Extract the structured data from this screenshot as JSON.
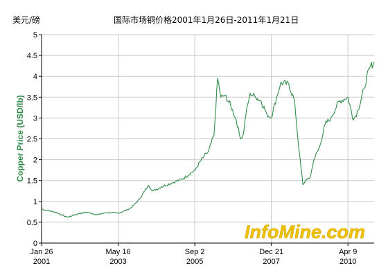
{
  "header": {
    "unit_label": "美元/磅",
    "title": "国际市场铜价格2001年1月26日-2011年1月21日"
  },
  "watermark": "InfoMine.com",
  "colors": {
    "line": "#2e8b47",
    "grid": "#c8c8c8",
    "axis": "#000000",
    "watermark": "#f2c200"
  },
  "chart_data": {
    "type": "line",
    "title": "国际市场铜价格2001年1月26日-2011年1月21日",
    "xlabel": "",
    "ylabel": "Copper Price (USD/lb)",
    "ylim": [
      0,
      5
    ],
    "xlim": [
      "2001-01-26",
      "2011-01-21"
    ],
    "grid": true,
    "y_ticks": [
      "0",
      "0.5",
      "1",
      "1.5",
      "2",
      "2.5",
      "3",
      "3.5",
      "4",
      "4.5",
      "5"
    ],
    "x_ticks": [
      {
        "line1": "Jan 26",
        "line2": "2001",
        "date": "2001-01-26"
      },
      {
        "line1": "May 16",
        "line2": "2003",
        "date": "2003-05-16"
      },
      {
        "line1": "Sep 2",
        "line2": "2005",
        "date": "2005-09-02"
      },
      {
        "line1": "Dec 21",
        "line2": "2007",
        "date": "2007-12-21"
      },
      {
        "line1": "Apr 9",
        "line2": "2010",
        "date": "2010-04-09"
      }
    ],
    "series": [
      {
        "x": [
          "2001-01-26",
          "2001-04-01",
          "2001-07-01",
          "2001-11-01",
          "2002-03-01",
          "2002-06-01",
          "2002-10-01",
          "2003-01-01",
          "2003-05-16",
          "2003-09-01",
          "2003-11-01",
          "2004-01-01",
          "2004-03-01",
          "2004-04-15",
          "2004-06-01",
          "2004-09-01",
          "2005-01-01",
          "2005-05-01",
          "2005-09-02",
          "2005-12-01",
          "2006-02-01",
          "2006-04-01",
          "2006-05-11",
          "2006-06-15",
          "2006-08-01",
          "2006-10-01",
          "2006-12-01",
          "2007-01-15",
          "2007-02-15",
          "2007-03-15",
          "2007-05-01",
          "2007-07-01",
          "2007-09-01",
          "2007-11-01",
          "2007-12-21",
          "2008-02-15",
          "2008-04-01",
          "2008-07-01",
          "2008-09-01",
          "2008-10-15",
          "2008-12-01",
          "2009-01-01",
          "2009-02-15",
          "2009-04-01",
          "2009-06-01",
          "2009-08-01",
          "2009-10-01",
          "2010-01-01",
          "2010-04-09",
          "2010-06-07",
          "2010-08-01",
          "2010-10-01",
          "2010-12-01",
          "2011-01-21"
        ],
        "values": [
          0.82,
          0.78,
          0.74,
          0.62,
          0.7,
          0.74,
          0.68,
          0.73,
          0.72,
          0.8,
          0.9,
          1.05,
          1.25,
          1.38,
          1.25,
          1.35,
          1.45,
          1.55,
          1.75,
          2.05,
          2.2,
          2.6,
          3.95,
          3.5,
          3.55,
          3.3,
          2.95,
          2.5,
          2.6,
          3.05,
          3.6,
          3.5,
          3.4,
          3.1,
          3.0,
          3.5,
          3.85,
          3.8,
          3.4,
          2.3,
          1.4,
          1.5,
          1.55,
          2.0,
          2.3,
          2.85,
          3.0,
          3.4,
          3.5,
          2.95,
          3.2,
          3.7,
          4.2,
          4.35
        ]
      }
    ]
  }
}
